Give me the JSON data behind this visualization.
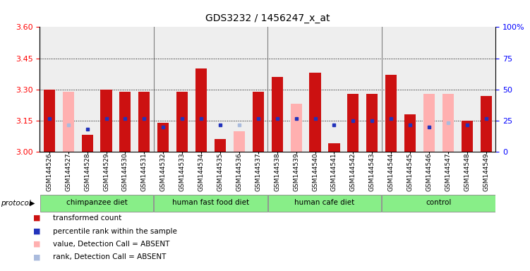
{
  "title": "GDS3232 / 1456247_x_at",
  "samples": [
    "GSM144526",
    "GSM144527",
    "GSM144528",
    "GSM144529",
    "GSM144530",
    "GSM144531",
    "GSM144532",
    "GSM144533",
    "GSM144534",
    "GSM144535",
    "GSM144536",
    "GSM144537",
    "GSM144538",
    "GSM144539",
    "GSM144540",
    "GSM144541",
    "GSM144542",
    "GSM144543",
    "GSM144544",
    "GSM144545",
    "GSM144546",
    "GSM144547",
    "GSM144548",
    "GSM144549"
  ],
  "red_bars": [
    3.3,
    null,
    3.08,
    3.3,
    3.29,
    3.29,
    3.14,
    3.29,
    3.4,
    3.06,
    null,
    3.29,
    3.36,
    null,
    3.38,
    3.04,
    3.28,
    3.28,
    3.37,
    3.18,
    null,
    null,
    3.15,
    3.27
  ],
  "pink_bars": [
    null,
    3.29,
    null,
    null,
    null,
    null,
    null,
    null,
    null,
    null,
    3.1,
    null,
    null,
    3.23,
    null,
    null,
    null,
    null,
    null,
    null,
    3.28,
    3.28,
    null,
    null
  ],
  "blue_squares": [
    3.16,
    null,
    3.11,
    3.16,
    3.16,
    3.16,
    3.12,
    3.16,
    3.16,
    3.13,
    null,
    3.16,
    3.16,
    3.16,
    3.16,
    3.13,
    3.15,
    3.15,
    3.16,
    3.13,
    3.12,
    null,
    3.13,
    3.16
  ],
  "light_blue_squares": [
    null,
    3.13,
    null,
    null,
    null,
    null,
    null,
    null,
    null,
    null,
    3.13,
    null,
    null,
    null,
    null,
    null,
    null,
    null,
    null,
    null,
    null,
    3.14,
    null,
    null
  ],
  "groups": [
    {
      "label": "chimpanzee diet",
      "start": 0,
      "end": 6
    },
    {
      "label": "human fast food diet",
      "start": 6,
      "end": 12
    },
    {
      "label": "human cafe diet",
      "start": 12,
      "end": 18
    },
    {
      "label": "control",
      "start": 18,
      "end": 24
    }
  ],
  "ylim": [
    3.0,
    3.6
  ],
  "y_ticks_left": [
    3.0,
    3.15,
    3.3,
    3.45,
    3.6
  ],
  "y_ticks_right": [
    0,
    25,
    50,
    75,
    100
  ],
  "red_color": "#CC1111",
  "pink_color": "#FFB0B0",
  "blue_color": "#2233BB",
  "light_blue_color": "#AABBDD",
  "bar_width": 0.6,
  "base": 3.0,
  "grid_lines": [
    3.15,
    3.3,
    3.45
  ]
}
